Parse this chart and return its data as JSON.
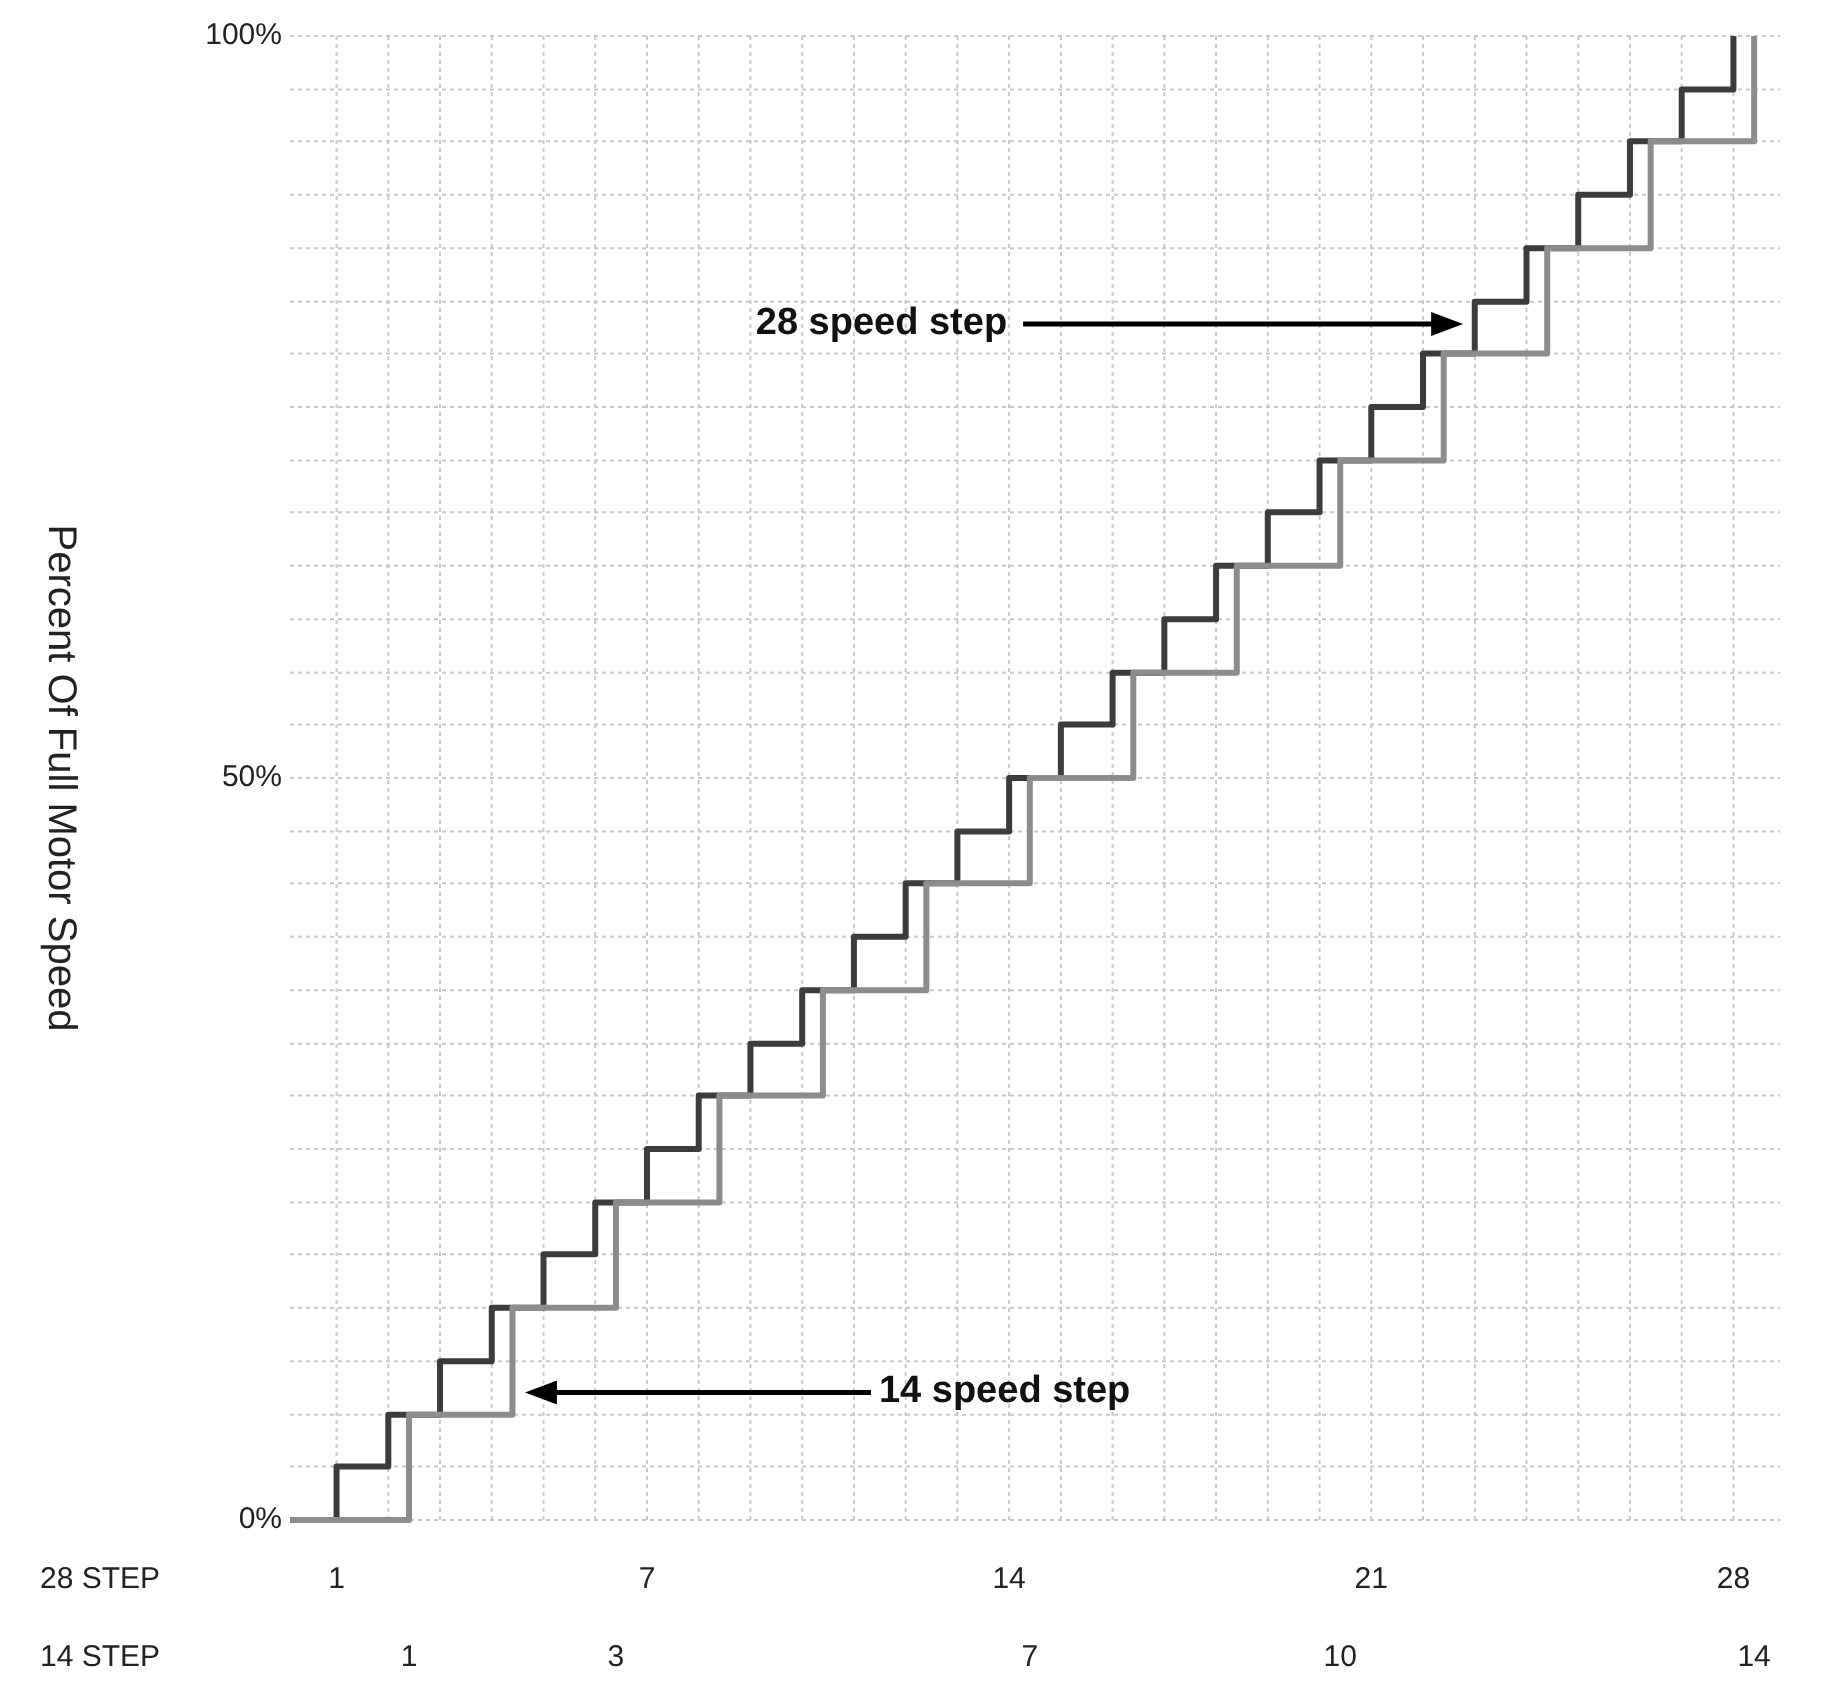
{
  "chart_data": {
    "type": "step",
    "ylabel": "Percent Of Full Motor Speed",
    "xlabel": "28 STEP",
    "x2label": "14 STEP",
    "xlim": [
      0.1,
      28.9
    ],
    "ylim": [
      0,
      100
    ],
    "x2lim": [
      -0.15,
      14.25
    ],
    "grid": true,
    "xticks": [
      {
        "value": 1,
        "label": "1"
      },
      {
        "value": 2,
        "label": null
      },
      {
        "value": 3,
        "label": null
      },
      {
        "value": 4,
        "label": null
      },
      {
        "value": 5,
        "label": null
      },
      {
        "value": 6,
        "label": null
      },
      {
        "value": 7,
        "label": "7"
      },
      {
        "value": 8,
        "label": null
      },
      {
        "value": 9,
        "label": null
      },
      {
        "value": 10,
        "label": null
      },
      {
        "value": 11,
        "label": null
      },
      {
        "value": 12,
        "label": null
      },
      {
        "value": 13,
        "label": null
      },
      {
        "value": 14,
        "label": "14"
      },
      {
        "value": 15,
        "label": null
      },
      {
        "value": 16,
        "label": null
      },
      {
        "value": 17,
        "label": null
      },
      {
        "value": 18,
        "label": null
      },
      {
        "value": 19,
        "label": null
      },
      {
        "value": 20,
        "label": null
      },
      {
        "value": 21,
        "label": "21"
      },
      {
        "value": 22,
        "label": null
      },
      {
        "value": 23,
        "label": null
      },
      {
        "value": 24,
        "label": null
      },
      {
        "value": 25,
        "label": null
      },
      {
        "value": 26,
        "label": null
      },
      {
        "value": 27,
        "label": null
      },
      {
        "value": 28,
        "label": "28"
      }
    ],
    "x2ticks": [
      1,
      3,
      7,
      10,
      14
    ],
    "yticks": [
      {
        "value": 0,
        "label": "0%"
      },
      {
        "value": 3.6,
        "label": null
      },
      {
        "value": 7.1,
        "label": null
      },
      {
        "value": 10.7,
        "label": null
      },
      {
        "value": 14.3,
        "label": null
      },
      {
        "value": 17.9,
        "label": null
      },
      {
        "value": 21.4,
        "label": null
      },
      {
        "value": 25,
        "label": null
      },
      {
        "value": 28.6,
        "label": null
      },
      {
        "value": 32.1,
        "label": null
      },
      {
        "value": 35.7,
        "label": null
      },
      {
        "value": 39.3,
        "label": null
      },
      {
        "value": 42.9,
        "label": null
      },
      {
        "value": 46.4,
        "label": null
      },
      {
        "value": 50,
        "label": "50%"
      },
      {
        "value": 53.6,
        "label": null
      },
      {
        "value": 57.1,
        "label": null
      },
      {
        "value": 60.7,
        "label": null
      },
      {
        "value": 64.3,
        "label": null
      },
      {
        "value": 67.9,
        "label": null
      },
      {
        "value": 71.4,
        "label": null
      },
      {
        "value": 75,
        "label": null
      },
      {
        "value": 78.6,
        "label": null
      },
      {
        "value": 82.1,
        "label": null
      },
      {
        "value": 85.7,
        "label": null
      },
      {
        "value": 89.3,
        "label": null
      },
      {
        "value": 92.9,
        "label": null
      },
      {
        "value": 96.4,
        "label": null
      },
      {
        "value": 100,
        "label": "100%"
      }
    ],
    "series": [
      {
        "color": "#3c3c3c",
        "x": [
          0.1,
          1,
          2,
          3,
          4,
          5,
          6,
          7,
          8,
          9,
          10,
          11,
          12,
          13,
          14,
          15,
          16,
          17,
          18,
          19,
          20,
          21,
          22,
          23,
          24,
          25,
          26,
          27,
          28
        ],
        "values": [
          0,
          3.6,
          7.1,
          10.7,
          14.3,
          17.9,
          21.4,
          25,
          28.6,
          32.1,
          35.7,
          39.3,
          42.9,
          46.4,
          50,
          53.6,
          57.1,
          60.7,
          64.3,
          67.9,
          71.4,
          75,
          78.6,
          82.1,
          85.7,
          89.3,
          92.9,
          96.4,
          100
        ]
      },
      {
        "color": "#8c8c8c",
        "x": [
          0.1,
          2.4,
          4.4,
          6.4,
          8.4,
          10.4,
          12.4,
          14.4,
          16.4,
          18.4,
          20.4,
          22.4,
          24.4,
          26.4,
          28.4
        ],
        "values": [
          0,
          7.1,
          14.3,
          21.4,
          28.6,
          35.7,
          42.9,
          50,
          57.1,
          64.3,
          71.4,
          78.6,
          85.7,
          92.9,
          100
        ]
      }
    ],
    "annotations": [
      "28 speed step",
      "14 speed step"
    ]
  }
}
